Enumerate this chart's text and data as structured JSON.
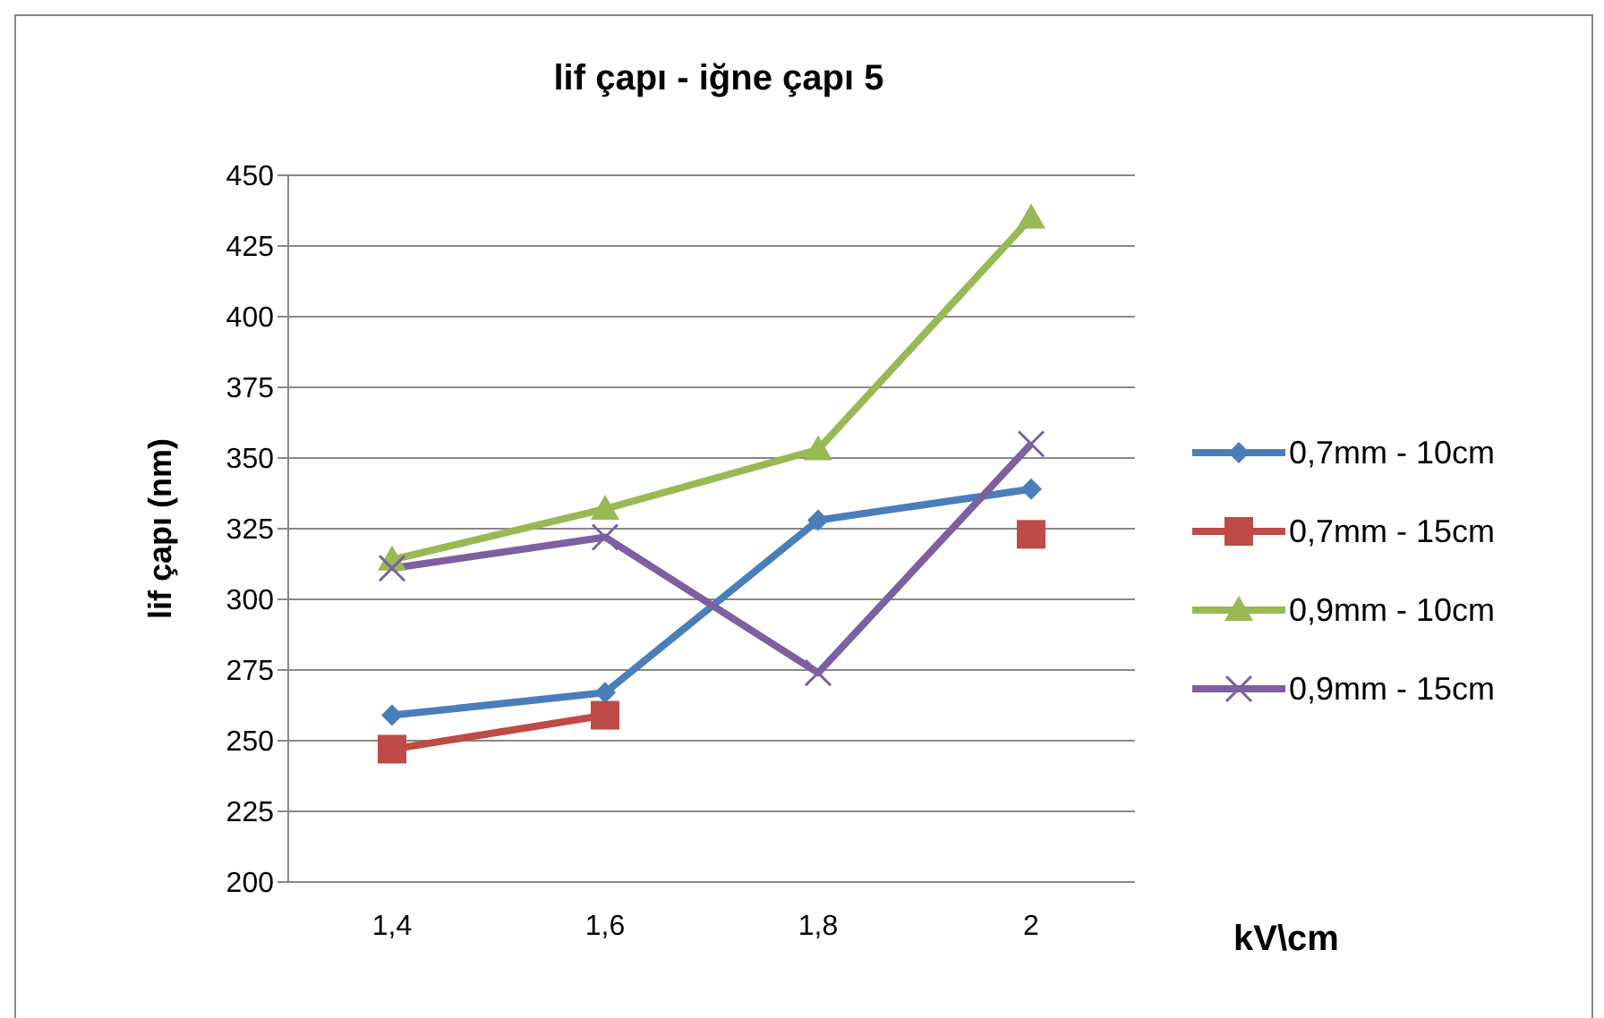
{
  "chart_data": {
    "type": "line",
    "title": "lif çapı - iğne çapı 5",
    "xlabel": "kV\\cm",
    "ylabel": "lif çapı (nm)",
    "categories": [
      "1,4",
      "1,6",
      "1,8",
      "2"
    ],
    "series": [
      {
        "name": "0,7mm - 10cm",
        "color": "#4a7ebb",
        "marker": "diamond",
        "values": [
          259,
          267,
          328,
          339
        ]
      },
      {
        "name": "0,7mm - 15cm",
        "color": "#be4b48",
        "marker": "square",
        "values": [
          247,
          259,
          null,
          323
        ]
      },
      {
        "name": "0,9mm - 10cm",
        "color": "#98b954",
        "marker": "triangle",
        "values": [
          314,
          332,
          353,
          435
        ]
      },
      {
        "name": "0,9mm - 15cm",
        "color": "#7d60a0",
        "marker": "cross",
        "values": [
          311,
          322,
          274,
          355
        ]
      }
    ],
    "ylim": [
      200,
      450
    ],
    "yticks": [
      200,
      225,
      250,
      275,
      300,
      325,
      350,
      375,
      400,
      425,
      450
    ],
    "grid": "y",
    "legend": "right"
  }
}
